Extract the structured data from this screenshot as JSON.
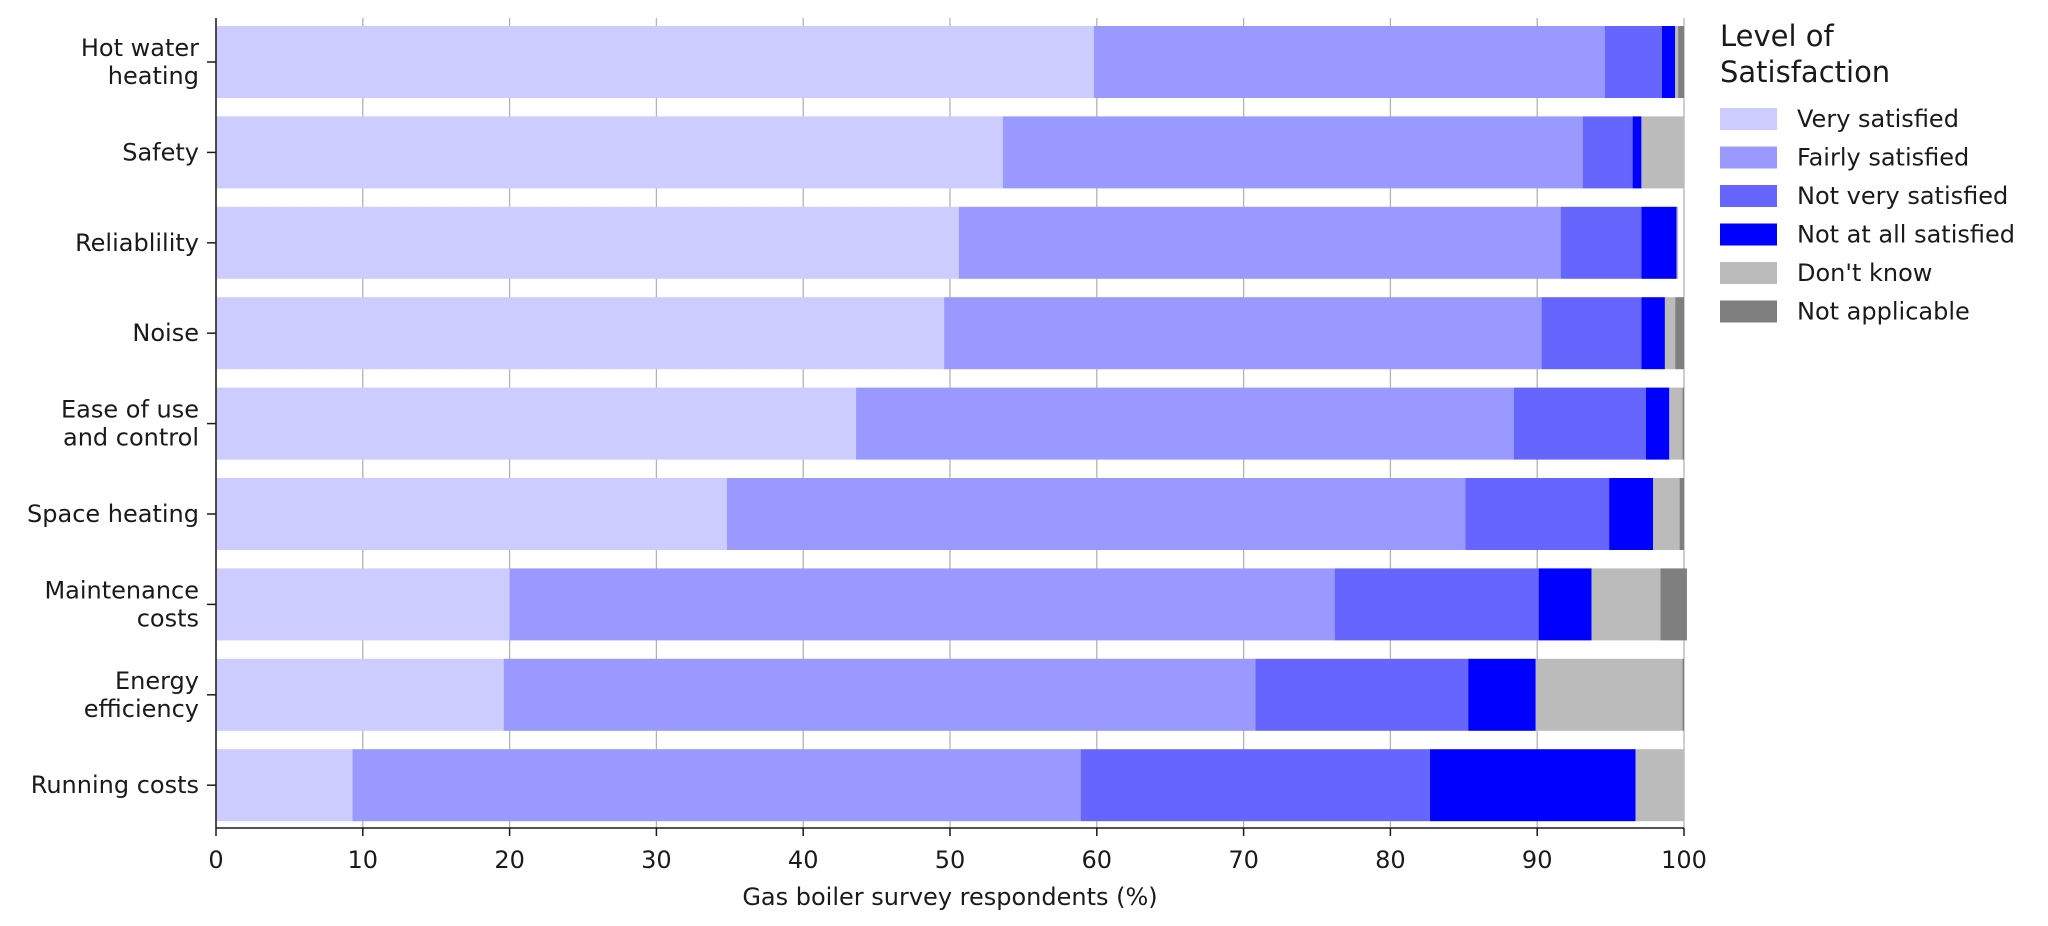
{
  "chart_data": {
    "type": "bar",
    "orientation": "horizontal",
    "stacked": true,
    "title": "",
    "xlabel": "Gas boiler survey respondents (%)",
    "ylabel": "",
    "xlim": [
      0,
      100
    ],
    "xticks": [
      "0",
      "10",
      "20",
      "30",
      "40",
      "50",
      "60",
      "70",
      "80",
      "90",
      "100"
    ],
    "grid": "vertical",
    "legend_position": "right",
    "legend_title": [
      "Level of",
      "Satisfaction"
    ],
    "categories": [
      [
        "Hot water",
        "heating"
      ],
      [
        "Safety"
      ],
      [
        "Reliablility"
      ],
      [
        "Noise"
      ],
      [
        "Ease of use",
        "and control"
      ],
      [
        "Space heating"
      ],
      [
        "Maintenance",
        "costs"
      ],
      [
        "Energy",
        "efficiency"
      ],
      [
        "Running costs"
      ]
    ],
    "series": [
      {
        "name": "Very satisfied",
        "color": "#ccccff",
        "values": [
          59.8,
          53.6,
          50.6,
          49.6,
          43.6,
          34.8,
          20.0,
          19.6,
          9.3
        ]
      },
      {
        "name": "Fairly satisfied",
        "color": "#9999ff",
        "values": [
          34.8,
          39.5,
          41.0,
          40.7,
          44.8,
          50.3,
          56.2,
          51.2,
          49.6
        ]
      },
      {
        "name": "Not very satisfied",
        "color": "#6666ff",
        "values": [
          3.9,
          3.4,
          5.5,
          6.8,
          9.0,
          9.8,
          13.9,
          14.5,
          23.8
        ]
      },
      {
        "name": "Not at all satisfied",
        "color": "#0000ff",
        "values": [
          0.9,
          0.6,
          2.4,
          1.6,
          1.6,
          3.0,
          3.6,
          4.6,
          14.0
        ]
      },
      {
        "name": "Don't know",
        "color": "#bbbbbb",
        "values": [
          0.2,
          2.9,
          0.1,
          0.7,
          0.9,
          1.8,
          4.7,
          10.0,
          3.3
        ]
      },
      {
        "name": "Not applicable",
        "color": "#7f7f7f",
        "values": [
          0.4,
          0.0,
          0.0,
          0.6,
          0.1,
          0.3,
          1.8,
          0.1,
          0.0
        ]
      }
    ]
  }
}
